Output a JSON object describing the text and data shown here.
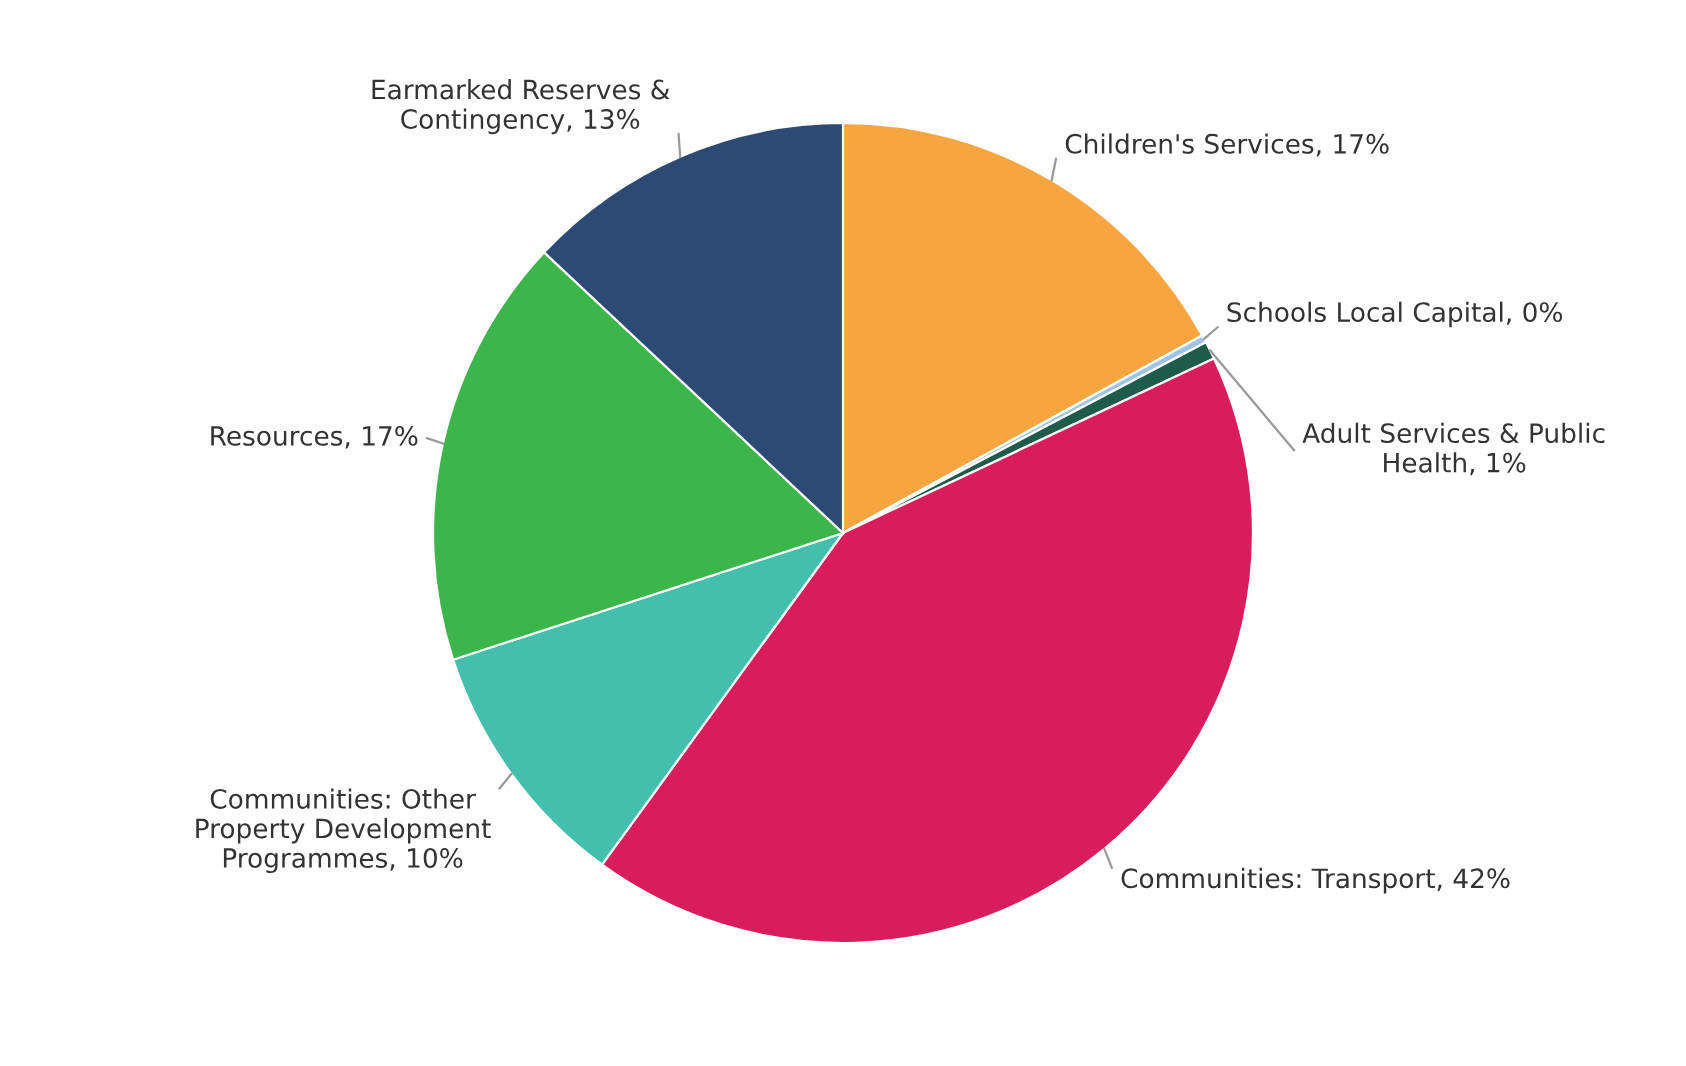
{
  "chart_data": {
    "type": "pie",
    "categories": [
      "Children's Services",
      "Schools Local Capital",
      "Adult Services & Public Health",
      "Communities: Transport",
      "Communities: Other Property Development Programmes",
      "Resources",
      "Earmarked Reserves & Contingency"
    ],
    "values": [
      17,
      0.3,
      0.7,
      42,
      10,
      17,
      13
    ],
    "value_labels": [
      "17%",
      "0%",
      "1%",
      "42%",
      "10%",
      "17%",
      "13%"
    ],
    "colors": [
      "#f7a541",
      "#9dc3e6",
      "#1e5b4b",
      "#d91c5c",
      "#44bfae",
      "#3cb54a",
      "#2c4a73"
    ]
  }
}
